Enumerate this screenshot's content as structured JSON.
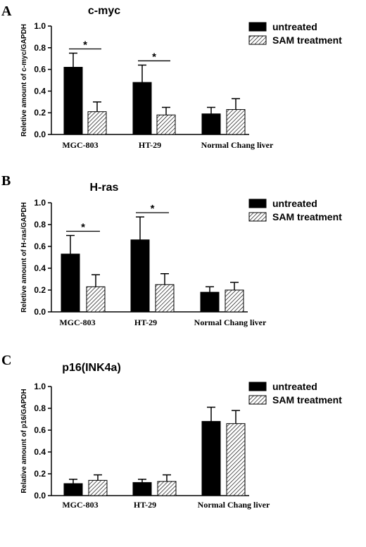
{
  "chart_data": [
    {
      "type": "bar",
      "panel": "A",
      "title": "c-myc",
      "ylabel": "Reletive amount of c-myc/GAPDH",
      "xlabel": "",
      "ylim": [
        0,
        1.0
      ],
      "yticks": [
        "0.0",
        "0.2",
        "0.4",
        "0.6",
        "0.8",
        "1.0"
      ],
      "categories": [
        "MGC-803",
        "HT-29",
        "Normal Chang liver"
      ],
      "series": [
        {
          "name": "untreated",
          "values": [
            0.62,
            0.48,
            0.19
          ],
          "errors": [
            0.13,
            0.16,
            0.06
          ]
        },
        {
          "name": "SAM treatment",
          "values": [
            0.21,
            0.18,
            0.23
          ],
          "errors": [
            0.09,
            0.07,
            0.1
          ]
        }
      ],
      "significance": [
        {
          "category": 0,
          "label": "*"
        },
        {
          "category": 1,
          "label": "*"
        }
      ],
      "legend_position": "top-right"
    },
    {
      "type": "bar",
      "panel": "B",
      "title": "H-ras",
      "ylabel": "Reletive amount of H-ras/GAPDH",
      "xlabel": "",
      "ylim": [
        0,
        1.0
      ],
      "yticks": [
        "0.0",
        "0.2",
        "0.4",
        "0.6",
        "0.8",
        "1.0"
      ],
      "categories": [
        "MGC-803",
        "HT-29",
        "Normal Chang liver"
      ],
      "series": [
        {
          "name": "untreated",
          "values": [
            0.53,
            0.66,
            0.18
          ],
          "errors": [
            0.17,
            0.21,
            0.05
          ]
        },
        {
          "name": "SAM treatment",
          "values": [
            0.23,
            0.25,
            0.2
          ],
          "errors": [
            0.11,
            0.1,
            0.07
          ]
        }
      ],
      "significance": [
        {
          "category": 0,
          "label": "*"
        },
        {
          "category": 1,
          "label": "*"
        }
      ],
      "legend_position": "top-right"
    },
    {
      "type": "bar",
      "panel": "C",
      "title": "p16(INK4a)",
      "ylabel": "Relative amount of p16/GAPDH",
      "xlabel": "",
      "ylim": [
        0,
        1.0
      ],
      "yticks": [
        "0.0",
        "0.2",
        "0.4",
        "0.6",
        "0.8",
        "1.0"
      ],
      "categories": [
        "MGC-803",
        "HT-29",
        "Normal Chang liver"
      ],
      "series": [
        {
          "name": "untreated",
          "values": [
            0.11,
            0.12,
            0.68
          ],
          "errors": [
            0.04,
            0.03,
            0.13
          ]
        },
        {
          "name": "SAM treatment",
          "values": [
            0.14,
            0.13,
            0.66
          ],
          "errors": [
            0.05,
            0.06,
            0.12
          ]
        }
      ],
      "significance": [],
      "legend_position": "top-right"
    }
  ],
  "colors": {
    "untreated": "#000000",
    "sam_hatch": "#000000",
    "background": "#ffffff"
  }
}
